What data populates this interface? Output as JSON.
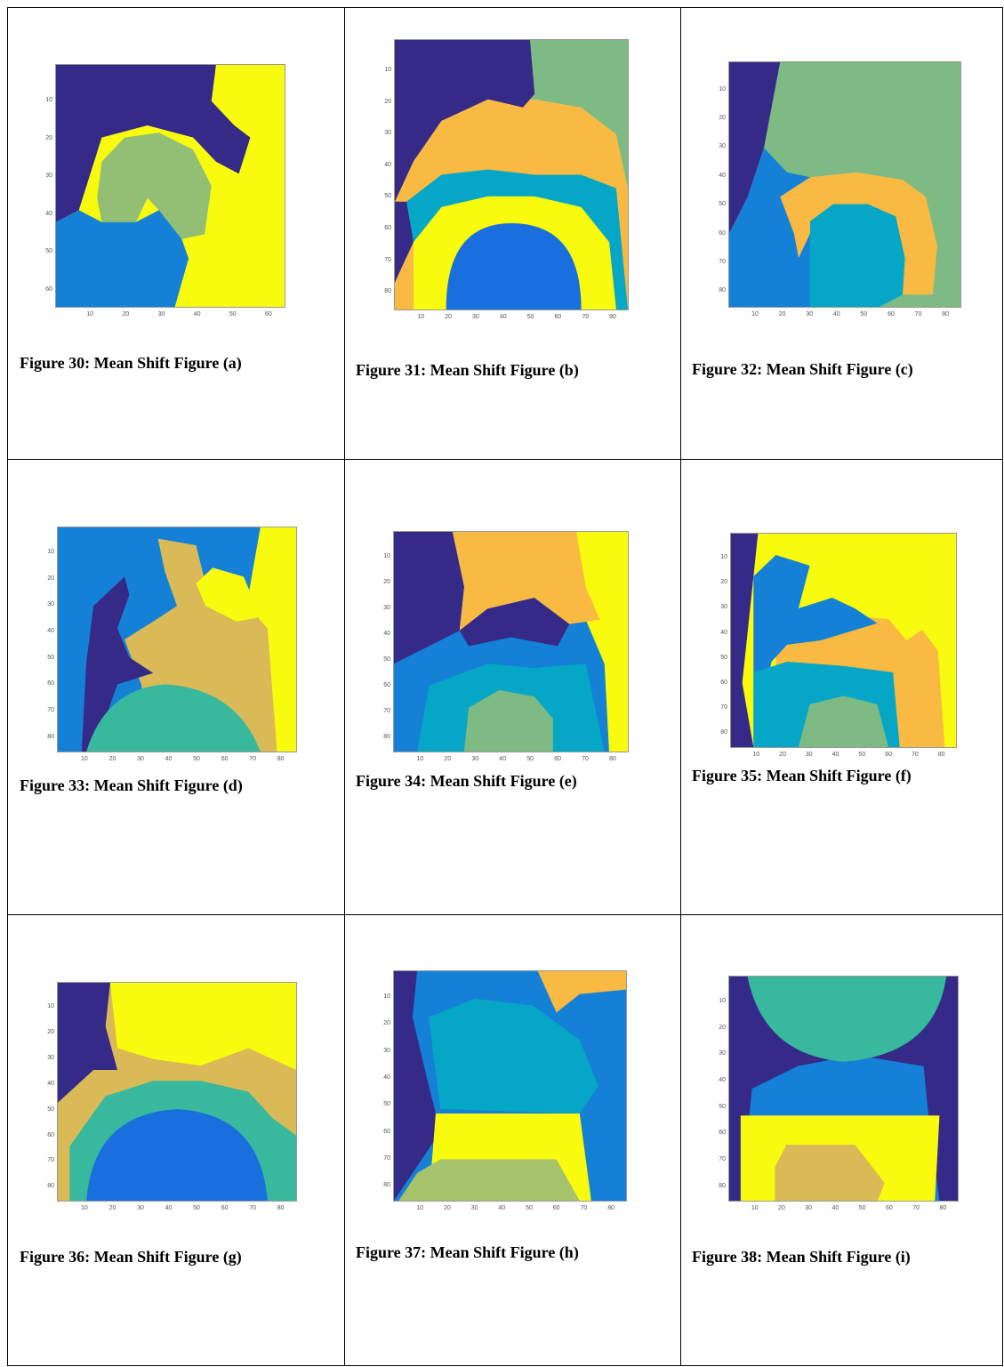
{
  "table": {
    "cells": [
      {
        "caption": "Figure 30: Mean Shift Figure (a)",
        "xlim": [
          0.5,
          64.5
        ],
        "ylim": [
          0.5,
          64.5
        ],
        "xticks": [
          10,
          20,
          30,
          40,
          50,
          60
        ],
        "yticks": [
          10,
          20,
          30,
          40,
          50,
          60
        ]
      },
      {
        "caption": "Figure 31: Mean Shift Figure (b)",
        "xlim": [
          0.5,
          85.5
        ],
        "ylim": [
          0.5,
          85.5
        ],
        "xticks": [
          10,
          20,
          30,
          40,
          50,
          60,
          70,
          80
        ],
        "yticks": [
          10,
          20,
          30,
          40,
          50,
          60,
          70,
          80
        ]
      },
      {
        "caption": "Figure 32: Mean Shift Figure (c)",
        "xlim": [
          0.5,
          85.5
        ],
        "ylim": [
          0.5,
          85.5
        ],
        "xticks": [
          10,
          20,
          30,
          40,
          50,
          60,
          70,
          80
        ],
        "yticks": [
          10,
          20,
          30,
          40,
          50,
          60,
          70,
          80
        ]
      },
      {
        "caption": "Figure 33: Mean Shift Figure (d)",
        "xlim": [
          0.5,
          85.5
        ],
        "ylim": [
          0.5,
          85.5
        ],
        "xticks": [
          10,
          20,
          30,
          40,
          50,
          60,
          70,
          80
        ],
        "yticks": [
          10,
          20,
          30,
          40,
          50,
          60,
          70,
          80
        ]
      },
      {
        "caption": "Figure 34: Mean Shift Figure (e)",
        "xlim": [
          0.5,
          85.5
        ],
        "ylim": [
          0.5,
          85.5
        ],
        "xticks": [
          10,
          20,
          30,
          40,
          50,
          60,
          70,
          80
        ],
        "yticks": [
          10,
          20,
          30,
          40,
          50,
          60,
          70,
          80
        ]
      },
      {
        "caption": "Figure 35: Mean Shift Figure (f)",
        "xlim": [
          0.5,
          85.5
        ],
        "ylim": [
          0.5,
          85.5
        ],
        "xticks": [
          10,
          20,
          30,
          40,
          50,
          60,
          70,
          80
        ],
        "yticks": [
          10,
          20,
          30,
          40,
          50,
          60,
          70,
          80
        ]
      },
      {
        "caption": "Figure 36: Mean Shift Figure (g)",
        "xlim": [
          0.5,
          85.5
        ],
        "ylim": [
          0.5,
          85.5
        ],
        "xticks": [
          10,
          20,
          30,
          40,
          50,
          60,
          70,
          80
        ],
        "yticks": [
          10,
          20,
          30,
          40,
          50,
          60,
          70,
          80
        ]
      },
      {
        "caption": "Figure 37: Mean Shift Figure (h)",
        "xlim": [
          0.5,
          85.5
        ],
        "ylim": [
          0.5,
          85.5
        ],
        "xticks": [
          10,
          20,
          30,
          40,
          50,
          60,
          70,
          80
        ],
        "yticks": [
          10,
          20,
          30,
          40,
          50,
          60,
          70,
          80
        ]
      },
      {
        "caption": "Figure 38: Mean Shift Figure (i)",
        "xlim": [
          0.5,
          85.5
        ],
        "ylim": [
          0.5,
          85.5
        ],
        "xticks": [
          10,
          20,
          30,
          40,
          50,
          60,
          70,
          80
        ],
        "yticks": [
          10,
          20,
          30,
          40,
          50,
          60,
          70,
          80
        ]
      }
    ]
  }
}
